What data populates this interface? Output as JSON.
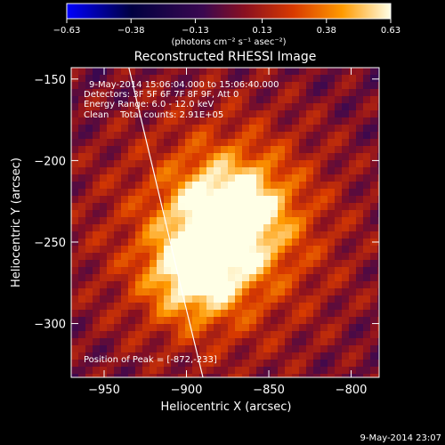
{
  "chart_data": {
    "type": "heatmap",
    "title": "Reconstructed RHESSI Image",
    "xlabel": "Heliocentric X (arcsec)",
    "ylabel": "Heliocentric Y (arcsec)",
    "xlim": [
      -970,
      -783
    ],
    "ylim": [
      -333,
      -143
    ],
    "xticks": [
      -950,
      -900,
      -850,
      -800
    ],
    "yticks": [
      -150,
      -200,
      -250,
      -300
    ],
    "colorbar": {
      "range": [
        -0.63,
        0.63
      ],
      "ticks": [
        -0.63,
        -0.38,
        -0.13,
        0.13,
        0.38,
        0.63
      ],
      "tick_labels": [
        "-0.63",
        "-0.38",
        "-0.13",
        "0.13",
        "0.38",
        "0.63"
      ],
      "unit_label": "(photons cm⁻² s⁻¹ asec⁻²)"
    },
    "sources": [
      {
        "x": -873,
        "y": -233,
        "amplitude": 0.63
      },
      {
        "x": -895,
        "y": -270,
        "amplitude": 0.5
      }
    ],
    "annotations": {
      "time_range": "9-May-2014 15:06:04.000 to 15:06:40.000",
      "detectors": "Detectors: 3F 5F 6F 7F 8F 9F, Att 0",
      "energy": "Energy Range: 6.0 - 12.0 keV",
      "clean": "Clean    Total counts: 2.91E+05",
      "peak": "Position of Peak = [-872,-233]"
    },
    "limb_curve": [
      [
        -935,
        -143
      ],
      [
        -918,
        -215
      ],
      [
        -904,
        -275
      ],
      [
        -890,
        -333
      ]
    ]
  },
  "footer": {
    "timestamp": "9-May-2014 23:07"
  }
}
